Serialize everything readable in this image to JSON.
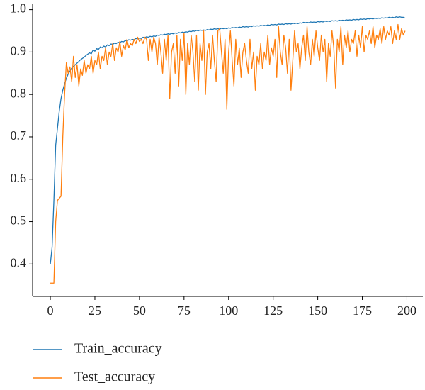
{
  "chart_data": {
    "type": "line",
    "x": [
      0,
      1,
      2,
      3,
      4,
      5,
      6,
      7,
      8,
      9,
      10,
      11,
      12,
      13,
      14,
      15,
      16,
      17,
      18,
      19,
      20,
      21,
      22,
      23,
      24,
      25,
      26,
      27,
      28,
      29,
      30,
      31,
      32,
      33,
      34,
      35,
      36,
      37,
      38,
      39,
      40,
      41,
      42,
      43,
      44,
      45,
      46,
      47,
      48,
      49,
      50,
      51,
      52,
      53,
      54,
      55,
      56,
      57,
      58,
      59,
      60,
      61,
      62,
      63,
      64,
      65,
      66,
      67,
      68,
      69,
      70,
      71,
      72,
      73,
      74,
      75,
      76,
      77,
      78,
      79,
      80,
      81,
      82,
      83,
      84,
      85,
      86,
      87,
      88,
      89,
      90,
      91,
      92,
      93,
      94,
      95,
      96,
      97,
      98,
      99,
      100,
      101,
      102,
      103,
      104,
      105,
      106,
      107,
      108,
      109,
      110,
      111,
      112,
      113,
      114,
      115,
      116,
      117,
      118,
      119,
      120,
      121,
      122,
      123,
      124,
      125,
      126,
      127,
      128,
      129,
      130,
      131,
      132,
      133,
      134,
      135,
      136,
      137,
      138,
      139,
      140,
      141,
      142,
      143,
      144,
      145,
      146,
      147,
      148,
      149,
      150,
      151,
      152,
      153,
      154,
      155,
      156,
      157,
      158,
      159,
      160,
      161,
      162,
      163,
      164,
      165,
      166,
      167,
      168,
      169,
      170,
      171,
      172,
      173,
      174,
      175,
      176,
      177,
      178,
      179,
      180,
      181,
      182,
      183,
      184,
      185,
      186,
      187,
      188,
      189,
      190,
      191,
      192,
      193,
      194,
      195,
      196,
      197,
      198,
      199
    ],
    "series": [
      {
        "name": "Train_accuracy",
        "color": "#1f77b4",
        "values": [
          0.4,
          0.44,
          0.55,
          0.68,
          0.72,
          0.76,
          0.79,
          0.81,
          0.825,
          0.838,
          0.848,
          0.855,
          0.862,
          0.866,
          0.87,
          0.874,
          0.878,
          0.882,
          0.885,
          0.888,
          0.892,
          0.895,
          0.898,
          0.896,
          0.905,
          0.902,
          0.908,
          0.906,
          0.912,
          0.91,
          0.914,
          0.912,
          0.917,
          0.915,
          0.919,
          0.918,
          0.921,
          0.92,
          0.923,
          0.922,
          0.925,
          0.924,
          0.927,
          0.926,
          0.929,
          0.928,
          0.93,
          0.929,
          0.932,
          0.931,
          0.933,
          0.932,
          0.935,
          0.934,
          0.936,
          0.935,
          0.937,
          0.936,
          0.938,
          0.937,
          0.94,
          0.939,
          0.941,
          0.94,
          0.942,
          0.941,
          0.943,
          0.942,
          0.944,
          0.943,
          0.945,
          0.944,
          0.946,
          0.945,
          0.947,
          0.946,
          0.948,
          0.947,
          0.949,
          0.948,
          0.95,
          0.949,
          0.951,
          0.95,
          0.952,
          0.951,
          0.952,
          0.951,
          0.953,
          0.952,
          0.954,
          0.953,
          0.955,
          0.954,
          0.955,
          0.954,
          0.956,
          0.955,
          0.956,
          0.955,
          0.957,
          0.956,
          0.958,
          0.957,
          0.958,
          0.957,
          0.959,
          0.958,
          0.96,
          0.959,
          0.96,
          0.959,
          0.961,
          0.96,
          0.962,
          0.961,
          0.962,
          0.961,
          0.963,
          0.962,
          0.963,
          0.962,
          0.964,
          0.963,
          0.965,
          0.964,
          0.965,
          0.964,
          0.966,
          0.965,
          0.966,
          0.965,
          0.967,
          0.966,
          0.967,
          0.966,
          0.968,
          0.967,
          0.968,
          0.967,
          0.969,
          0.968,
          0.97,
          0.969,
          0.97,
          0.969,
          0.971,
          0.97,
          0.971,
          0.97,
          0.972,
          0.971,
          0.972,
          0.971,
          0.973,
          0.972,
          0.973,
          0.972,
          0.974,
          0.973,
          0.974,
          0.973,
          0.975,
          0.974,
          0.975,
          0.974,
          0.976,
          0.975,
          0.976,
          0.975,
          0.977,
          0.976,
          0.977,
          0.976,
          0.978,
          0.977,
          0.978,
          0.977,
          0.979,
          0.978,
          0.979,
          0.978,
          0.98,
          0.979,
          0.98,
          0.979,
          0.981,
          0.98,
          0.981,
          0.98,
          0.982,
          0.981,
          0.982,
          0.981,
          0.983,
          0.982,
          0.983,
          0.982,
          0.982,
          0.98
        ]
      },
      {
        "name": "Test_accuracy",
        "color": "#ff7f0e",
        "values": [
          0.355,
          0.355,
          0.355,
          0.5,
          0.55,
          0.555,
          0.56,
          0.7,
          0.8,
          0.875,
          0.85,
          0.865,
          0.83,
          0.89,
          0.84,
          0.87,
          0.82,
          0.86,
          0.845,
          0.88,
          0.85,
          0.87,
          0.86,
          0.89,
          0.85,
          0.88,
          0.87,
          0.9,
          0.86,
          0.89,
          0.88,
          0.91,
          0.87,
          0.9,
          0.89,
          0.92,
          0.88,
          0.91,
          0.9,
          0.925,
          0.89,
          0.915,
          0.905,
          0.93,
          0.91,
          0.92,
          0.915,
          0.93,
          0.92,
          0.935,
          0.925,
          0.93,
          0.92,
          0.935,
          0.93,
          0.88,
          0.93,
          0.9,
          0.935,
          0.92,
          0.87,
          0.935,
          0.9,
          0.85,
          0.93,
          0.88,
          0.94,
          0.79,
          0.9,
          0.92,
          0.85,
          0.94,
          0.82,
          0.93,
          0.88,
          0.945,
          0.8,
          0.92,
          0.87,
          0.94,
          0.9,
          0.83,
          0.94,
          0.81,
          0.92,
          0.88,
          0.95,
          0.8,
          0.9,
          0.92,
          0.86,
          0.94,
          0.88,
          0.83,
          0.95,
          0.955,
          0.9,
          0.85,
          0.93,
          0.765,
          0.9,
          0.95,
          0.88,
          0.82,
          0.93,
          0.87,
          0.91,
          0.84,
          0.9,
          0.92,
          0.88,
          0.85,
          0.93,
          0.86,
          0.9,
          0.81,
          0.89,
          0.87,
          0.92,
          0.86,
          0.9,
          0.88,
          0.94,
          0.87,
          0.91,
          0.89,
          0.93,
          0.84,
          0.96,
          0.9,
          0.87,
          0.94,
          0.91,
          0.85,
          0.93,
          0.81,
          0.88,
          0.95,
          0.9,
          0.92,
          0.86,
          0.91,
          0.94,
          0.88,
          0.96,
          0.9,
          0.87,
          0.93,
          0.89,
          0.95,
          0.91,
          0.88,
          0.94,
          0.9,
          0.93,
          0.83,
          0.92,
          0.89,
          0.95,
          0.91,
          0.815,
          0.93,
          0.9,
          0.96,
          0.87,
          0.94,
          0.91,
          0.95,
          0.9,
          0.93,
          0.92,
          0.95,
          0.89,
          0.94,
          0.91,
          0.96,
          0.9,
          0.94,
          0.93,
          0.95,
          0.92,
          0.96,
          0.91,
          0.94,
          0.93,
          0.955,
          0.92,
          0.96,
          0.93,
          0.95,
          0.94,
          0.96,
          0.92,
          0.95,
          0.93,
          0.965,
          0.93,
          0.955,
          0.94,
          0.95
        ]
      }
    ],
    "xlim": [
      -9.95,
      208.95
    ],
    "xticks": [
      0,
      25,
      50,
      75,
      100,
      125,
      150,
      175,
      200
    ],
    "ylim": [
      0.3236,
      1.0144
    ],
    "yticks": [
      0.4,
      0.5,
      0.6,
      0.7,
      0.8,
      0.9,
      {
        "value": 1,
        "label": "1.0"
      }
    ],
    "legend": "bottom"
  }
}
